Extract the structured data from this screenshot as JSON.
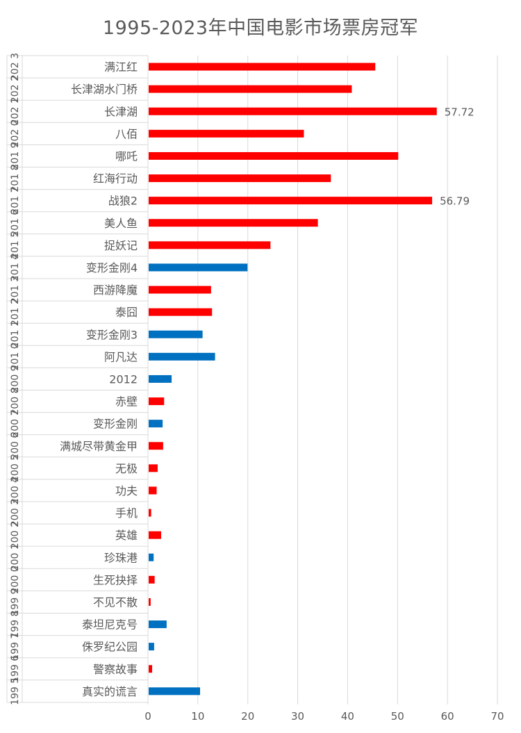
{
  "chart_data": {
    "type": "bar",
    "orientation": "horizontal",
    "title": "1995-2023年中国电影市场票房冠军",
    "xlim": [
      0,
      70
    ],
    "x_ticks": [
      0,
      10,
      20,
      30,
      40,
      50,
      60,
      70
    ],
    "grid": "vertical",
    "legend": "none",
    "colors": {
      "chinese": "#ff0000",
      "foreign": "#0070c0",
      "gridline": "#d9d9d9",
      "text": "#595959"
    },
    "rows": [
      {
        "year_label": "2023",
        "year_visible": "202 3",
        "film": "满江红",
        "value": 45.4,
        "origin": "chinese",
        "data_label": ""
      },
      {
        "year_label": "2022",
        "year_visible": "202 2",
        "film": "长津湖水门桥",
        "value": 40.7,
        "origin": "chinese",
        "data_label": ""
      },
      {
        "year_label": "2021",
        "year_visible": "202 1",
        "film": "长津湖",
        "value": 57.72,
        "origin": "chinese",
        "data_label": "57.72"
      },
      {
        "year_label": "2020",
        "year_visible": "202 0",
        "film": "八佰",
        "value": 31.1,
        "origin": "chinese",
        "data_label": ""
      },
      {
        "year_label": "2019",
        "year_visible": "201 9",
        "film": "哪吒",
        "value": 50.0,
        "origin": "chinese",
        "data_label": ""
      },
      {
        "year_label": "2018",
        "year_visible": "201 8",
        "film": "红海行动",
        "value": 36.5,
        "origin": "chinese",
        "data_label": ""
      },
      {
        "year_label": "2017",
        "year_visible": "201 7",
        "film": "战狼2",
        "value": 56.79,
        "origin": "chinese",
        "data_label": "56.79"
      },
      {
        "year_label": "2016",
        "year_visible": "201 6",
        "film": "美人鱼",
        "value": 33.9,
        "origin": "chinese",
        "data_label": ""
      },
      {
        "year_label": "2015",
        "year_visible": "201 5",
        "film": "捉妖记",
        "value": 24.4,
        "origin": "chinese",
        "data_label": ""
      },
      {
        "year_label": "2014",
        "year_visible": "201 4",
        "film": "变形金刚4",
        "value": 19.8,
        "origin": "foreign",
        "data_label": ""
      },
      {
        "year_label": "2013",
        "year_visible": "201 3",
        "film": "西游降魔",
        "value": 12.5,
        "origin": "chinese",
        "data_label": ""
      },
      {
        "year_label": "2012",
        "year_visible": "201 2",
        "film": "泰囧",
        "value": 12.7,
        "origin": "chinese",
        "data_label": ""
      },
      {
        "year_label": "2011",
        "year_visible": "201 1",
        "film": "变形金刚3",
        "value": 10.8,
        "origin": "foreign",
        "data_label": ""
      },
      {
        "year_label": "2010",
        "year_visible": "201 0",
        "film": "阿凡达",
        "value": 13.3,
        "origin": "foreign",
        "data_label": ""
      },
      {
        "year_label": "2009",
        "year_visible": "200 9",
        "film": "2012",
        "value": 4.6,
        "origin": "foreign",
        "data_label": ""
      },
      {
        "year_label": "2008",
        "year_visible": "200 8",
        "film": "赤壁",
        "value": 3.1,
        "origin": "chinese",
        "data_label": ""
      },
      {
        "year_label": "2007",
        "year_visible": "200 7",
        "film": "变形金刚",
        "value": 2.8,
        "origin": "foreign",
        "data_label": ""
      },
      {
        "year_label": "2006",
        "year_visible": "200 6",
        "film": "满城尽带黄金甲",
        "value": 2.9,
        "origin": "chinese",
        "data_label": ""
      },
      {
        "year_label": "2005",
        "year_visible": "200 5",
        "film": "无极",
        "value": 1.8,
        "origin": "chinese",
        "data_label": ""
      },
      {
        "year_label": "2004",
        "year_visible": "200 4",
        "film": "功夫",
        "value": 1.6,
        "origin": "chinese",
        "data_label": ""
      },
      {
        "year_label": "2003",
        "year_visible": "200 3",
        "film": "手机",
        "value": 0.5,
        "origin": "chinese",
        "data_label": ""
      },
      {
        "year_label": "2002",
        "year_visible": "200 2",
        "film": "英雄",
        "value": 2.5,
        "origin": "chinese",
        "data_label": ""
      },
      {
        "year_label": "2001",
        "year_visible": "200 1",
        "film": "珍珠港",
        "value": 1.0,
        "origin": "foreign",
        "data_label": ""
      },
      {
        "year_label": "2000",
        "year_visible": "200 0",
        "film": "生死抉择",
        "value": 1.2,
        "origin": "chinese",
        "data_label": ""
      },
      {
        "year_label": "1999",
        "year_visible": "199 9",
        "film": "不见不散",
        "value": 0.4,
        "origin": "chinese",
        "data_label": ""
      },
      {
        "year_label": "1998",
        "year_visible": "199 8",
        "film": "泰坦尼克号",
        "value": 3.6,
        "origin": "foreign",
        "data_label": ""
      },
      {
        "year_label": "1997",
        "year_visible": "199 7",
        "film": "侏罗纪公园",
        "value": 1.1,
        "origin": "foreign",
        "data_label": ""
      },
      {
        "year_label": "1996",
        "year_visible": "199 6",
        "film": "警察故事",
        "value": 0.7,
        "origin": "chinese",
        "data_label": ""
      },
      {
        "year_label": "1995",
        "year_visible": "199 5",
        "film": "真实的谎言",
        "value": 10.3,
        "origin": "foreign",
        "data_label": ""
      }
    ]
  }
}
